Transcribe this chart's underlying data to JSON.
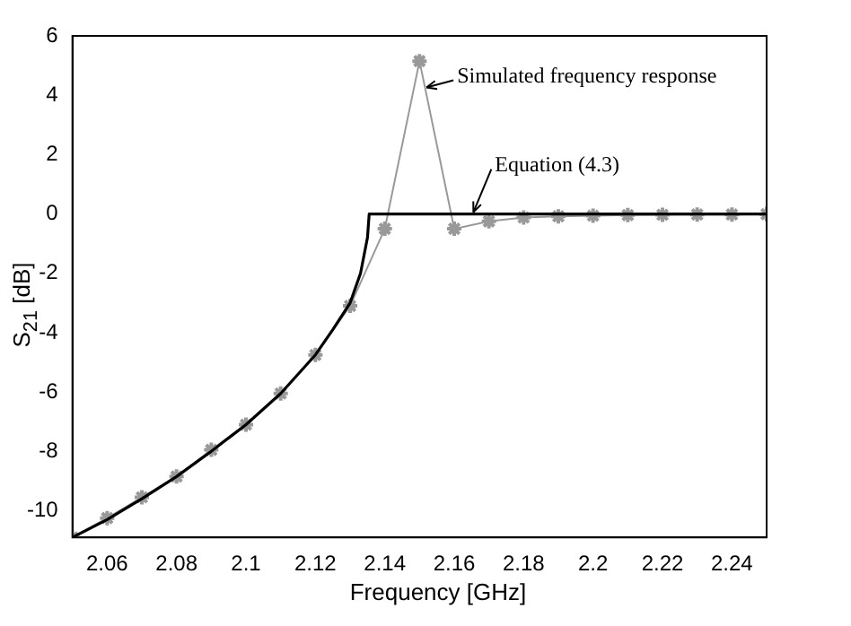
{
  "chart_data": {
    "type": "line",
    "xlabel": "Frequency [GHz]",
    "ylabel": "S$_{21}$ [dB]",
    "xlim": [
      2.05,
      2.25
    ],
    "xticks": [
      2.06,
      2.08,
      2.1,
      2.12,
      2.14,
      2.16,
      2.18,
      2.2,
      2.22,
      2.24
    ],
    "ylim": [
      -10.9,
      6
    ],
    "yticks": [
      -10,
      -8,
      -6,
      -4,
      -2,
      0,
      2,
      4,
      6
    ],
    "grid": false,
    "legend": false,
    "series": [
      {
        "color": "#000000",
        "marker": "none",
        "x": [
          2.05,
          2.06,
          2.07,
          2.08,
          2.09,
          2.1,
          2.11,
          2.12,
          2.125,
          2.13,
          2.133,
          2.135,
          2.1355,
          2.25
        ],
        "values": [
          -10.9,
          -10.3,
          -9.6,
          -8.85,
          -8.0,
          -7.1,
          -6.05,
          -4.75,
          -3.9,
          -3.0,
          -2.0,
          -0.8,
          0,
          0
        ]
      },
      {
        "color": "#999999",
        "marker": "cross",
        "x": [
          2.05,
          2.06,
          2.07,
          2.08,
          2.09,
          2.1,
          2.11,
          2.12,
          2.13,
          2.14,
          2.15,
          2.16,
          2.17,
          2.18,
          2.19,
          2.2,
          2.21,
          2.22,
          2.23,
          2.24,
          2.25
        ],
        "values": [
          -10.9,
          -10.25,
          -9.55,
          -8.85,
          -7.95,
          -7.1,
          -6.05,
          -4.75,
          -3.1,
          -0.5,
          5.15,
          -0.5,
          -0.25,
          -0.12,
          -0.08,
          -0.06,
          -0.04,
          -0.03,
          -0.02,
          -0.02,
          -0.01
        ]
      }
    ],
    "annotations": [
      {
        "text": "Simulated frequency response",
        "x": 2.1515,
        "y": 4.2
      },
      {
        "text": "Equation (4.3)",
        "x": 2.165,
        "y": 0
      }
    ]
  }
}
